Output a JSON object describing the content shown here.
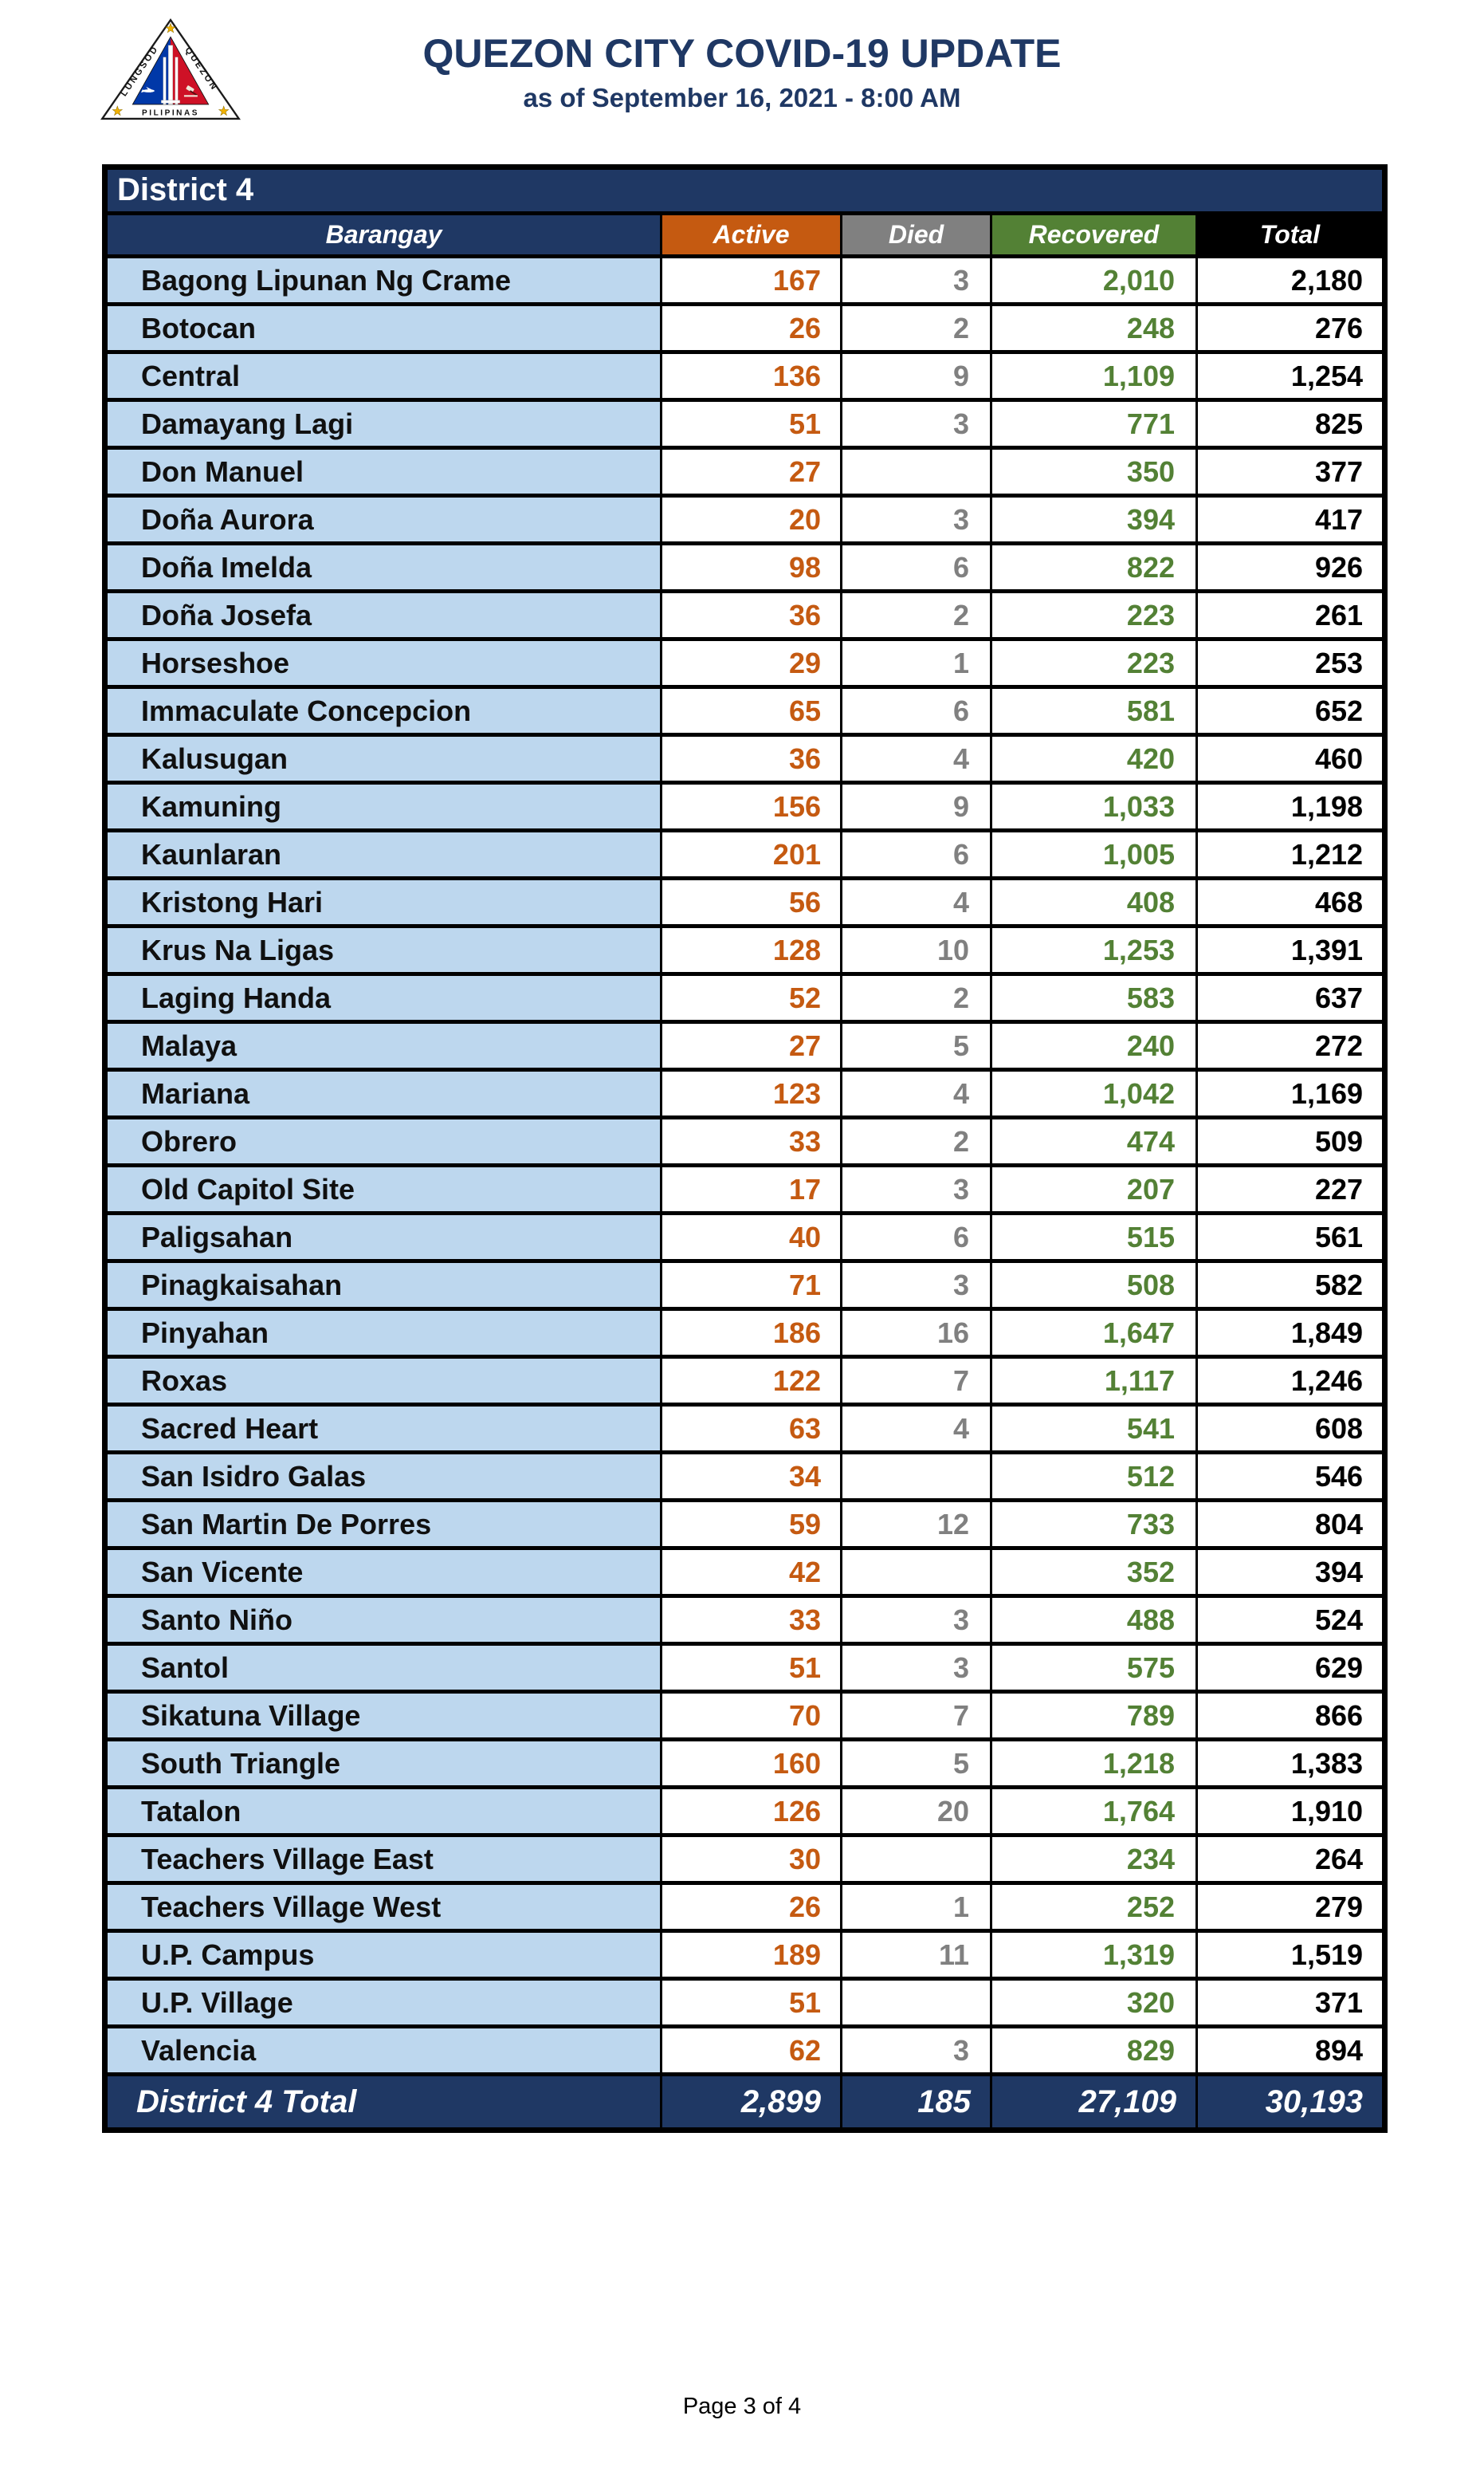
{
  "header": {
    "title": "QUEZON CITY COVID-19 UPDATE",
    "subtitle": "as of September 16, 2021 - 8:00 AM",
    "logo": {
      "name": "quezon-city-seal",
      "left_text": "LUNGSOD",
      "right_text": "QUEZON",
      "bottom_text": "PILIPINAS"
    }
  },
  "table": {
    "district_label": "District 4",
    "columns": [
      "Barangay",
      "Active",
      "Died",
      "Recovered",
      "Total"
    ],
    "rows": [
      {
        "barangay": "Bagong Lipunan Ng Crame",
        "active": "167",
        "died": "3",
        "recovered": "2,010",
        "total": "2,180"
      },
      {
        "barangay": "Botocan",
        "active": "26",
        "died": "2",
        "recovered": "248",
        "total": "276"
      },
      {
        "barangay": "Central",
        "active": "136",
        "died": "9",
        "recovered": "1,109",
        "total": "1,254"
      },
      {
        "barangay": "Damayang Lagi",
        "active": "51",
        "died": "3",
        "recovered": "771",
        "total": "825"
      },
      {
        "barangay": "Don Manuel",
        "active": "27",
        "died": "",
        "recovered": "350",
        "total": "377"
      },
      {
        "barangay": "Doña Aurora",
        "active": "20",
        "died": "3",
        "recovered": "394",
        "total": "417"
      },
      {
        "barangay": "Doña Imelda",
        "active": "98",
        "died": "6",
        "recovered": "822",
        "total": "926"
      },
      {
        "barangay": "Doña Josefa",
        "active": "36",
        "died": "2",
        "recovered": "223",
        "total": "261"
      },
      {
        "barangay": "Horseshoe",
        "active": "29",
        "died": "1",
        "recovered": "223",
        "total": "253"
      },
      {
        "barangay": "Immaculate Concepcion",
        "active": "65",
        "died": "6",
        "recovered": "581",
        "total": "652"
      },
      {
        "barangay": "Kalusugan",
        "active": "36",
        "died": "4",
        "recovered": "420",
        "total": "460"
      },
      {
        "barangay": "Kamuning",
        "active": "156",
        "died": "9",
        "recovered": "1,033",
        "total": "1,198"
      },
      {
        "barangay": "Kaunlaran",
        "active": "201",
        "died": "6",
        "recovered": "1,005",
        "total": "1,212"
      },
      {
        "barangay": "Kristong Hari",
        "active": "56",
        "died": "4",
        "recovered": "408",
        "total": "468"
      },
      {
        "barangay": "Krus Na Ligas",
        "active": "128",
        "died": "10",
        "recovered": "1,253",
        "total": "1,391"
      },
      {
        "barangay": "Laging Handa",
        "active": "52",
        "died": "2",
        "recovered": "583",
        "total": "637"
      },
      {
        "barangay": "Malaya",
        "active": "27",
        "died": "5",
        "recovered": "240",
        "total": "272"
      },
      {
        "barangay": "Mariana",
        "active": "123",
        "died": "4",
        "recovered": "1,042",
        "total": "1,169"
      },
      {
        "barangay": "Obrero",
        "active": "33",
        "died": "2",
        "recovered": "474",
        "total": "509"
      },
      {
        "barangay": "Old Capitol Site",
        "active": "17",
        "died": "3",
        "recovered": "207",
        "total": "227"
      },
      {
        "barangay": "Paligsahan",
        "active": "40",
        "died": "6",
        "recovered": "515",
        "total": "561"
      },
      {
        "barangay": "Pinagkaisahan",
        "active": "71",
        "died": "3",
        "recovered": "508",
        "total": "582"
      },
      {
        "barangay": "Pinyahan",
        "active": "186",
        "died": "16",
        "recovered": "1,647",
        "total": "1,849"
      },
      {
        "barangay": "Roxas",
        "active": "122",
        "died": "7",
        "recovered": "1,117",
        "total": "1,246"
      },
      {
        "barangay": "Sacred Heart",
        "active": "63",
        "died": "4",
        "recovered": "541",
        "total": "608"
      },
      {
        "barangay": "San Isidro Galas",
        "active": "34",
        "died": "",
        "recovered": "512",
        "total": "546"
      },
      {
        "barangay": "San Martin De Porres",
        "active": "59",
        "died": "12",
        "recovered": "733",
        "total": "804"
      },
      {
        "barangay": "San Vicente",
        "active": "42",
        "died": "",
        "recovered": "352",
        "total": "394"
      },
      {
        "barangay": "Santo Niño",
        "active": "33",
        "died": "3",
        "recovered": "488",
        "total": "524"
      },
      {
        "barangay": "Santol",
        "active": "51",
        "died": "3",
        "recovered": "575",
        "total": "629"
      },
      {
        "barangay": "Sikatuna Village",
        "active": "70",
        "died": "7",
        "recovered": "789",
        "total": "866"
      },
      {
        "barangay": "South Triangle",
        "active": "160",
        "died": "5",
        "recovered": "1,218",
        "total": "1,383"
      },
      {
        "barangay": "Tatalon",
        "active": "126",
        "died": "20",
        "recovered": "1,764",
        "total": "1,910"
      },
      {
        "barangay": "Teachers Village East",
        "active": "30",
        "died": "",
        "recovered": "234",
        "total": "264"
      },
      {
        "barangay": "Teachers Village West",
        "active": "26",
        "died": "1",
        "recovered": "252",
        "total": "279"
      },
      {
        "barangay": "U.P. Campus",
        "active": "189",
        "died": "11",
        "recovered": "1,319",
        "total": "1,519"
      },
      {
        "barangay": "U.P. Village",
        "active": "51",
        "died": "",
        "recovered": "320",
        "total": "371"
      },
      {
        "barangay": "Valencia",
        "active": "62",
        "died": "3",
        "recovered": "829",
        "total": "894"
      }
    ],
    "total_row": {
      "label": "District 4 Total",
      "active": "2,899",
      "died": "185",
      "recovered": "27,109",
      "total": "30,193"
    }
  },
  "footer": {
    "page_label": "Page 3 of 4"
  },
  "colors": {
    "navy": "#1F3864",
    "row_blue": "#BDD7EE",
    "active_orange": "#C55A11",
    "died_gray": "#808080",
    "recovered_green": "#538135",
    "total_black": "#000000",
    "seal_blue": "#0038A8",
    "seal_red": "#CE1126",
    "seal_gold": "#F2B200"
  }
}
